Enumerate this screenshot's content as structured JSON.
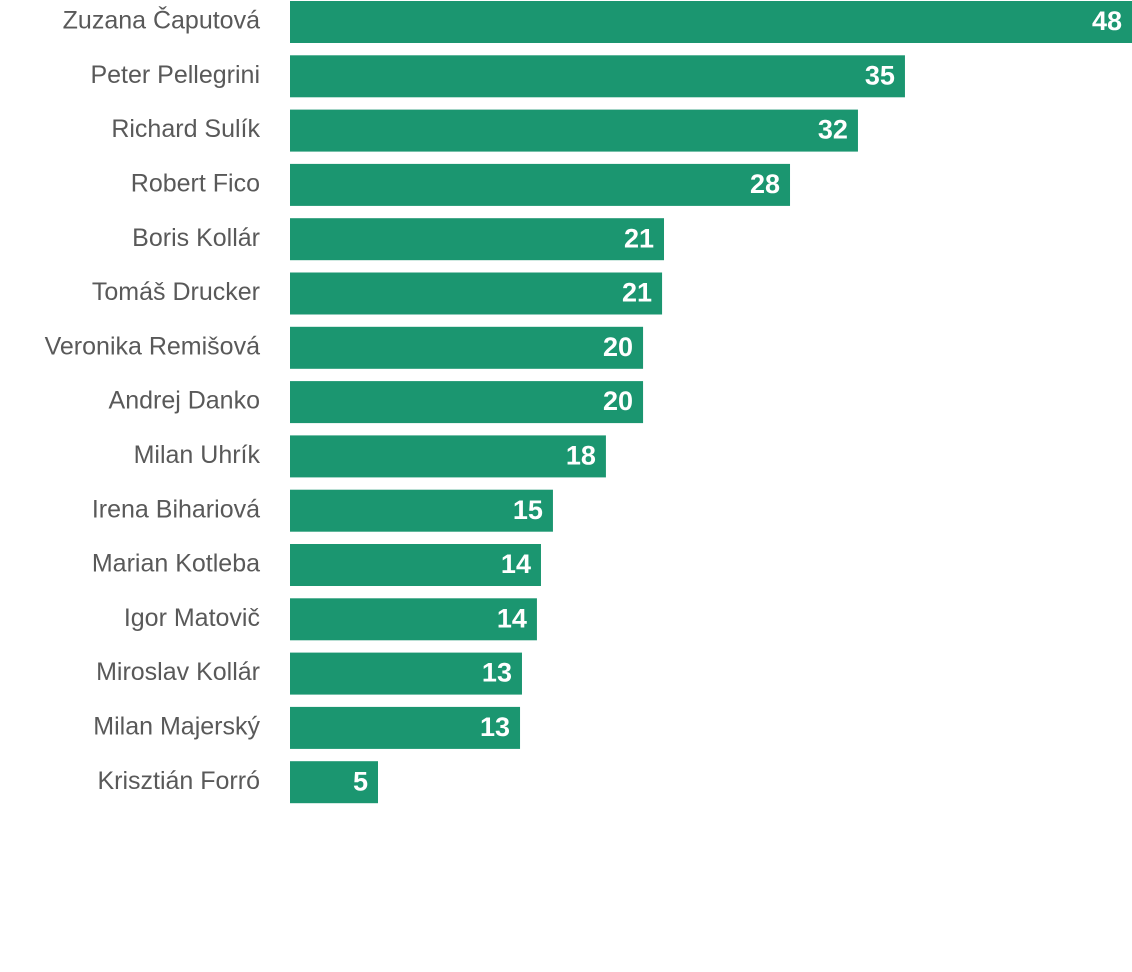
{
  "chart_data": {
    "type": "hbar",
    "categories": [
      "Zuzana Čaputová",
      "Peter Pellegrini",
      "Richard Sulík",
      "Robert Fico",
      "Boris Kollár",
      "Tomáš Drucker",
      "Veronika Remišová",
      "Andrej Danko",
      "Milan Uhrík",
      "Irena Bihariová",
      "Marian Kotleba",
      "Igor Matovič",
      "Miroslav Kollár",
      "Milan Majerský",
      "Krisztián Forró"
    ],
    "values": [
      47.84,
      34.94,
      32.27,
      28.41,
      21.25,
      21.14,
      20.06,
      20.06,
      17.95,
      14.94,
      14.26,
      14.03,
      13.18,
      13.07,
      5.0
    ],
    "value_labels": [
      "48",
      "35",
      "32",
      "28",
      "21",
      "21",
      "20",
      "20",
      "18",
      "15",
      "14",
      "14",
      "13",
      "13",
      "5"
    ],
    "color": "#1b9670",
    "xlim": [
      0,
      47.84
    ]
  }
}
